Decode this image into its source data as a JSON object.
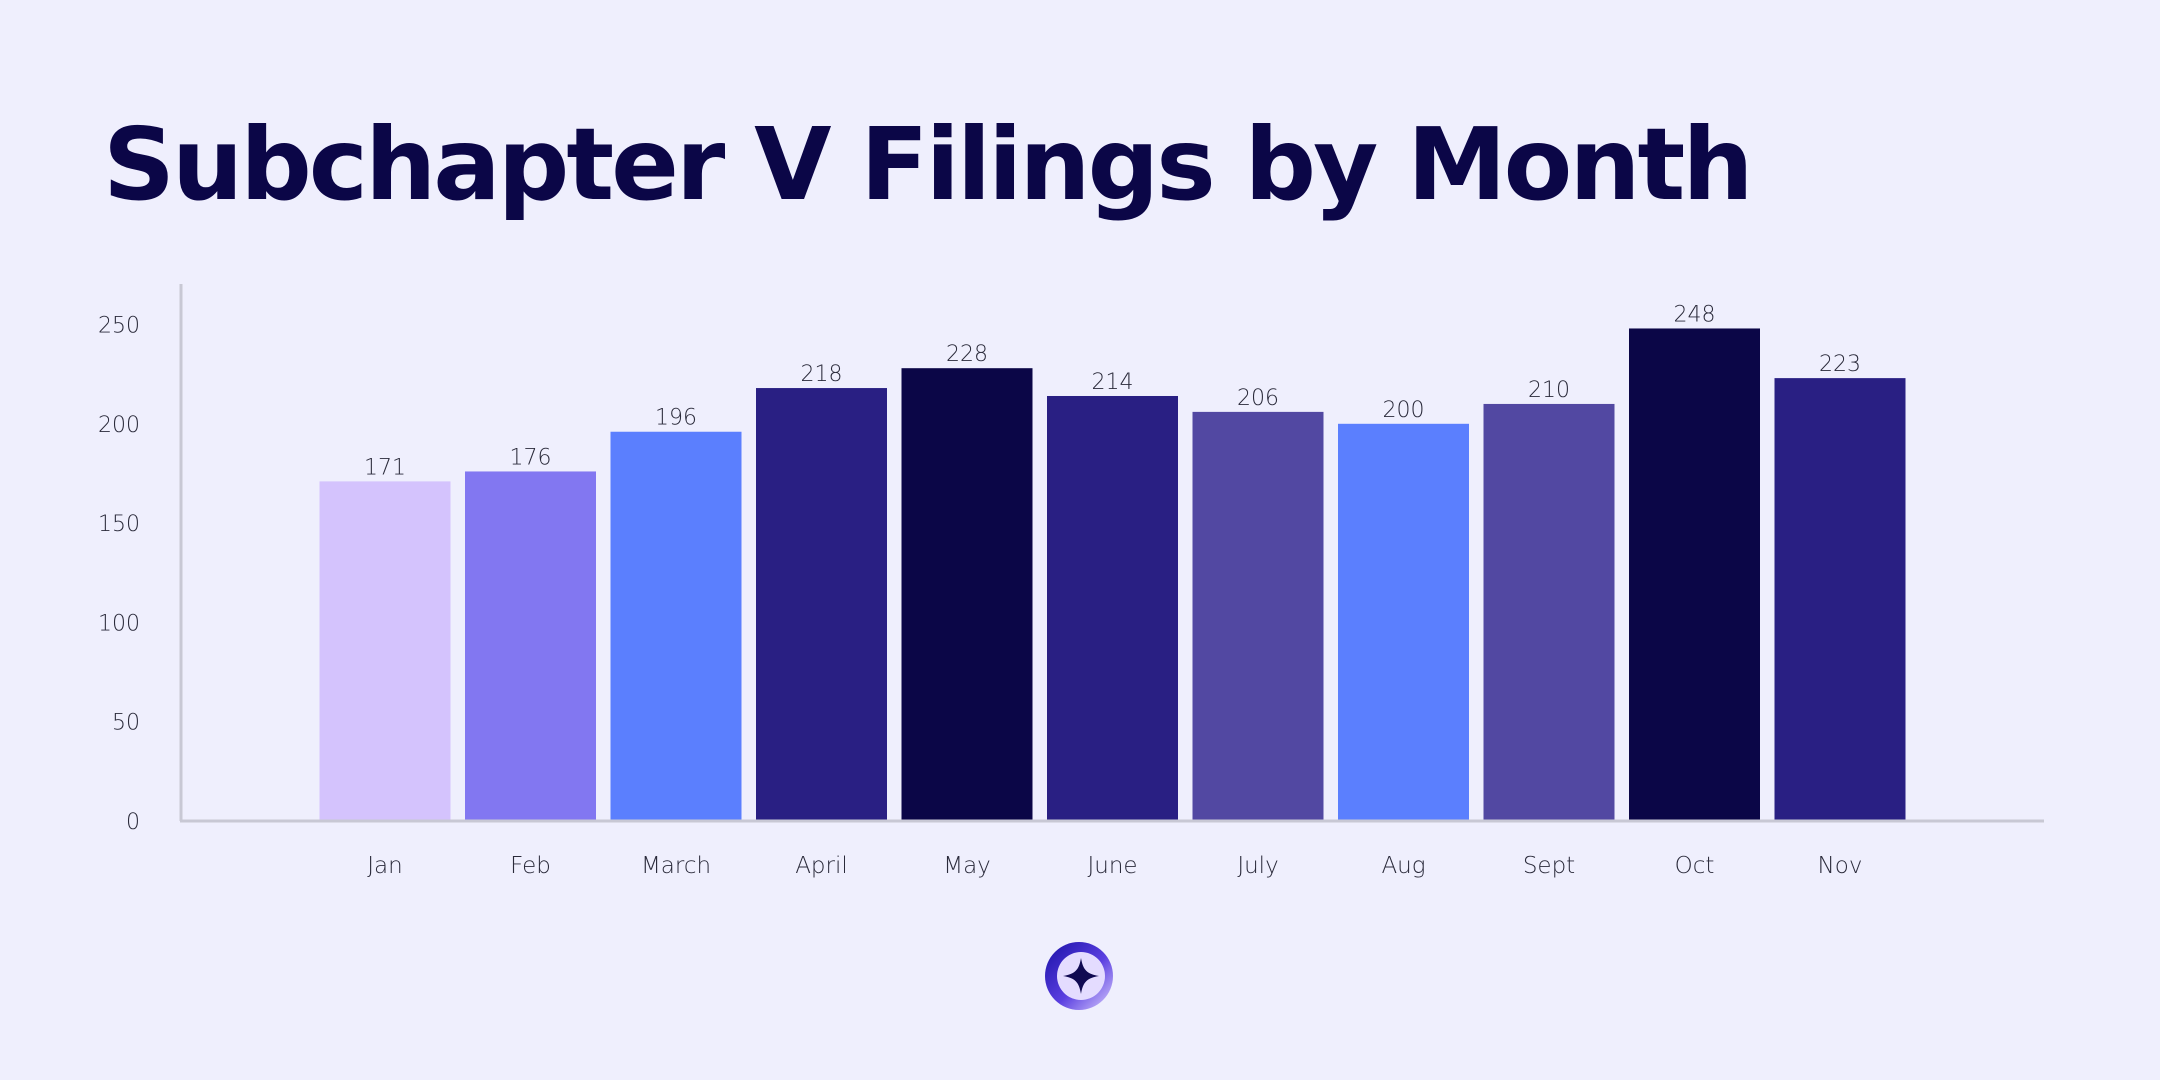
{
  "title": "Subchapter V Filings by Month",
  "colors": {
    "background": "#efeffd",
    "title": "#0b0647",
    "axis": "#c8c8d4",
    "label": "#2a2a3a"
  },
  "logo": {
    "icon": "sparkle-star-icon"
  },
  "chart_data": {
    "type": "bar",
    "title": "Subchapter V Filings by Month",
    "xlabel": "",
    "ylabel": "",
    "ylim": [
      0,
      270
    ],
    "yticks": [
      0,
      50,
      100,
      150,
      200,
      250
    ],
    "grid": false,
    "legend": "none",
    "categories": [
      "Jan",
      "Feb",
      "March",
      "April",
      "May",
      "June",
      "July",
      "Aug",
      "Sept",
      "Oct",
      "Nov"
    ],
    "values": [
      171,
      176,
      196,
      218,
      228,
      214,
      206,
      200,
      210,
      248,
      223
    ],
    "data_labels": [
      "171",
      "176",
      "196",
      "218",
      "228",
      "214",
      "206",
      "200",
      "210",
      "248",
      "223"
    ],
    "bar_colors": [
      "#d4c3fd",
      "#8277f1",
      "#5b7ffe",
      "#291f83",
      "#0b0647",
      "#291f83",
      "#5248a2",
      "#5b7ffe",
      "#5248a2",
      "#0b0647",
      "#291f83"
    ]
  }
}
